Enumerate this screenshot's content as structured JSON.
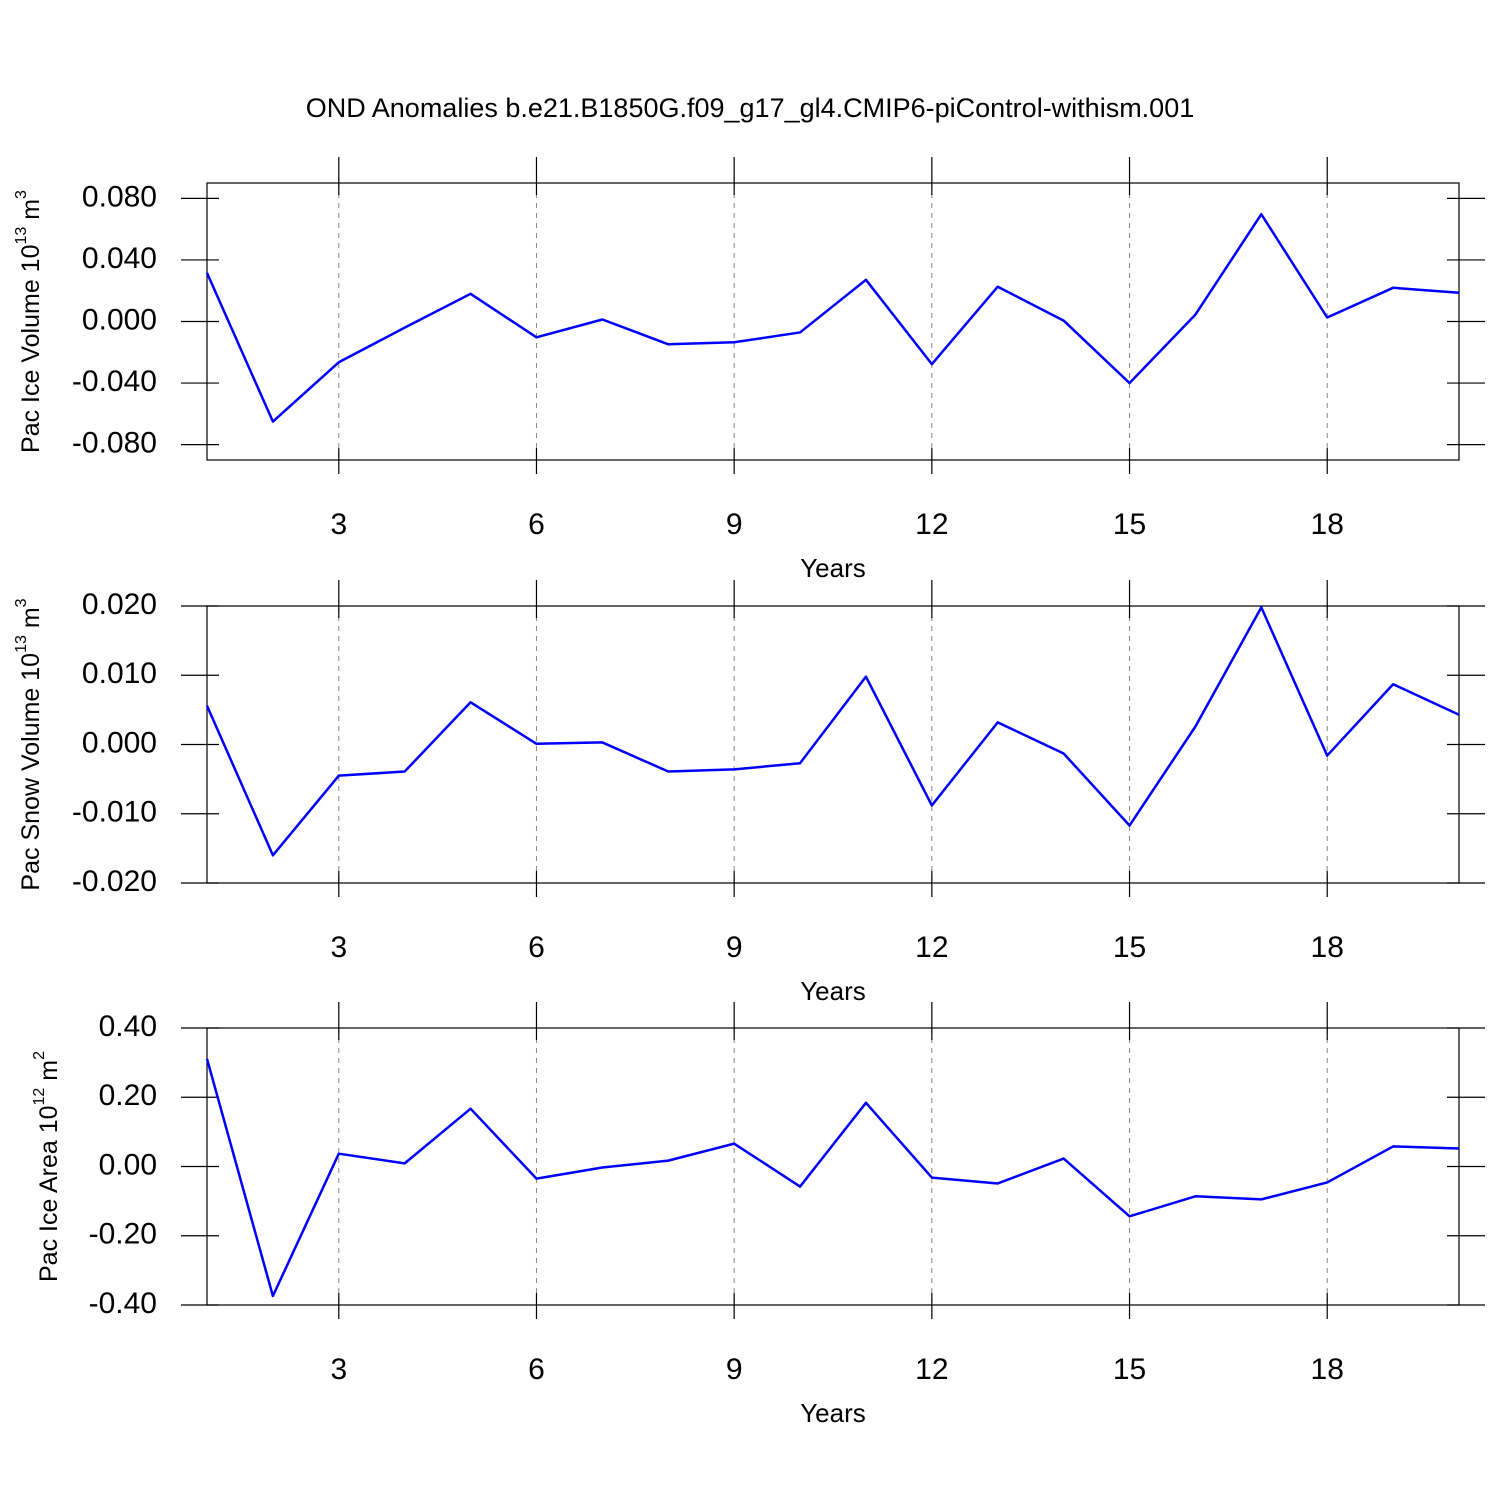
{
  "title": "OND Anomalies b.e21.B1850G.f09_g17_gl4.CMIP6-piControl-withism.001",
  "chart_data": [
    {
      "type": "line",
      "ylabel": [
        "Pac Ice Volume 10",
        "13",
        " m",
        "3"
      ],
      "xlabel": "Years",
      "x": [
        1,
        2,
        3,
        4,
        5,
        6,
        7,
        8,
        9,
        10,
        11,
        12,
        13,
        14,
        15,
        16,
        17,
        18,
        19,
        20
      ],
      "values": [
        0.0316,
        -0.065,
        -0.0265,
        -0.004,
        0.018,
        -0.0103,
        0.0013,
        -0.0148,
        -0.0135,
        -0.0071,
        0.0271,
        -0.0277,
        0.0226,
        0.0006,
        -0.04,
        0.0045,
        0.0697,
        0.0026,
        0.0219,
        0.0187
      ],
      "color": "#0000ff",
      "xlim": [
        1,
        20
      ],
      "xticks": [
        3,
        6,
        9,
        12,
        15,
        18
      ],
      "xgrid": true,
      "ylim": [
        -0.09,
        0.09
      ],
      "yticks": [
        {
          "value": -0.08,
          "label": "-0.080"
        },
        {
          "value": -0.04,
          "label": "-0.040"
        },
        {
          "value": 0,
          "label": "0.000"
        },
        {
          "value": 0.04,
          "label": "0.040"
        },
        {
          "value": 0.08,
          "label": "0.080"
        }
      ]
    },
    {
      "type": "line",
      "ylabel": [
        "Pac Snow Volume 10",
        "13",
        " m",
        "3"
      ],
      "xlabel": "Years",
      "x": [
        1,
        2,
        3,
        4,
        5,
        6,
        7,
        8,
        9,
        10,
        11,
        12,
        13,
        14,
        15,
        16,
        17,
        18,
        19,
        20
      ],
      "values": [
        0.0056,
        -0.016,
        -0.0045,
        -0.0039,
        0.0061,
        0.0001,
        0.0003,
        -0.0039,
        -0.0036,
        -0.0027,
        0.0098,
        -0.0088,
        0.0032,
        -0.0013,
        -0.0117,
        0.0026,
        0.0198,
        -0.0016,
        0.0087,
        0.0043
      ],
      "color": "#0000ff",
      "xlim": [
        1,
        20
      ],
      "xticks": [
        3,
        6,
        9,
        12,
        15,
        18
      ],
      "xgrid": true,
      "ylim": [
        -0.02,
        0.02
      ],
      "yticks": [
        {
          "value": -0.02,
          "label": "-0.020"
        },
        {
          "value": -0.01,
          "label": "-0.010"
        },
        {
          "value": 0,
          "label": "0.000"
        },
        {
          "value": 0.01,
          "label": "0.010"
        },
        {
          "value": 0.02,
          "label": "0.020"
        }
      ]
    },
    {
      "type": "line",
      "ylabel": [
        "Pac Ice Area 10",
        "12",
        " m",
        "2"
      ],
      "xlabel": "Years",
      "x": [
        1,
        2,
        3,
        4,
        5,
        6,
        7,
        8,
        9,
        10,
        11,
        12,
        13,
        14,
        15,
        16,
        17,
        18,
        19,
        20
      ],
      "values": [
        0.311,
        -0.374,
        0.037,
        0.009,
        0.167,
        -0.035,
        -0.003,
        0.017,
        0.066,
        -0.058,
        0.184,
        -0.032,
        -0.049,
        0.023,
        -0.144,
        -0.086,
        -0.095,
        -0.046,
        0.058,
        0.052
      ],
      "color": "#0000ff",
      "xlim": [
        1,
        20
      ],
      "xticks": [
        3,
        6,
        9,
        12,
        15,
        18
      ],
      "xgrid": true,
      "ylim": [
        -0.4,
        0.4
      ],
      "yticks": [
        {
          "value": -0.4,
          "label": "-0.40"
        },
        {
          "value": -0.2,
          "label": "-0.20"
        },
        {
          "value": 0,
          "label": "0.00"
        },
        {
          "value": 0.2,
          "label": "0.20"
        },
        {
          "value": 0.4,
          "label": "0.40"
        }
      ]
    }
  ]
}
